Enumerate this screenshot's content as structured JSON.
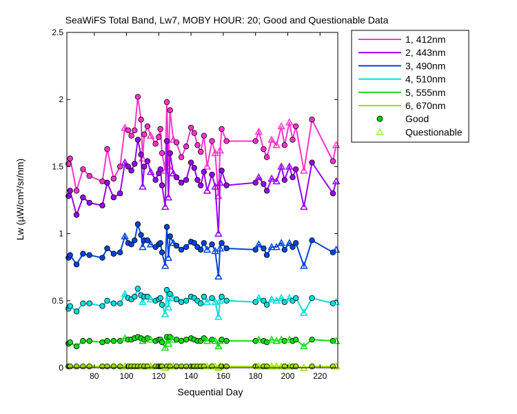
{
  "chart_data": {
    "type": "line",
    "title": "SeaWiFS Total Band,  Lw7, MOBY HOUR: 20;  Good and Questionable Data",
    "xlabel": "Sequential Day",
    "ylabel": "Lw (µW/cm²/sr/nm)",
    "xlim": [
      63,
      231
    ],
    "ylim": [
      0,
      2.5
    ],
    "xticks": [
      80,
      100,
      120,
      140,
      160,
      180,
      200,
      220
    ],
    "yticks": [
      0,
      0.5,
      1,
      1.5,
      2,
      2.5
    ],
    "ytick_labels": [
      "0",
      "0.5",
      "1",
      "1.5",
      "2",
      "2.5"
    ],
    "grid": false,
    "legend_position": "outside-right",
    "x": [
      64,
      65,
      69,
      73,
      77,
      85,
      88,
      92,
      96,
      99,
      101,
      103,
      105,
      107,
      109,
      110,
      111,
      113,
      115,
      118,
      120,
      121,
      122,
      124,
      125,
      126,
      127,
      129,
      131,
      134,
      137,
      140,
      142,
      144,
      146,
      148,
      150,
      153,
      155,
      157,
      158,
      159,
      162,
      180,
      182,
      185,
      187,
      190,
      193,
      196,
      198,
      201,
      203,
      205,
      210,
      215,
      228,
      230
    ],
    "series": [
      {
        "name": "1, 412nm",
        "color": "#ff33cc",
        "values": [
          1.52,
          1.56,
          1.32,
          1.48,
          1.43,
          1.39,
          1.63,
          1.41,
          1.5,
          1.79,
          1.77,
          1.73,
          1.77,
          2.02,
          1.85,
          1.56,
          1.74,
          1.8,
          1.73,
          1.67,
          1.72,
          1.78,
          1.6,
          1.47,
          1.98,
          1.5,
          1.92,
          1.7,
          1.68,
          1.57,
          1.65,
          1.79,
          1.75,
          1.66,
          1.61,
          1.73,
          1.5,
          1.69,
          1.6,
          1.28,
          1.62,
          1.78,
          1.69,
          1.69,
          1.76,
          1.63,
          1.57,
          1.7,
          1.66,
          1.8,
          1.66,
          1.83,
          1.7,
          1.8,
          1.47,
          1.85,
          1.54,
          1.66
        ]
      },
      {
        "name": "2, 443nm",
        "color": "#9900ee",
        "values": [
          1.28,
          1.32,
          1.14,
          1.27,
          1.23,
          1.21,
          1.38,
          1.27,
          1.3,
          1.53,
          1.5,
          1.47,
          1.52,
          1.7,
          1.59,
          1.35,
          1.5,
          1.54,
          1.46,
          1.4,
          1.45,
          1.48,
          1.36,
          1.2,
          1.69,
          1.27,
          1.6,
          1.45,
          1.42,
          1.38,
          1.4,
          1.53,
          1.49,
          1.4,
          1.36,
          1.46,
          1.32,
          1.44,
          1.35,
          1.0,
          1.38,
          1.47,
          1.36,
          1.38,
          1.42,
          1.37,
          1.32,
          1.41,
          1.39,
          1.5,
          1.4,
          1.5,
          1.42,
          1.48,
          1.2,
          1.53,
          1.3,
          1.39
        ]
      },
      {
        "name": "3, 490nm",
        "color": "#0044dd",
        "values": [
          0.82,
          0.84,
          0.77,
          0.85,
          0.84,
          0.82,
          0.89,
          0.85,
          0.86,
          0.98,
          0.93,
          0.92,
          0.95,
          1.07,
          0.99,
          0.9,
          0.95,
          0.95,
          0.92,
          0.9,
          0.92,
          0.93,
          0.86,
          0.76,
          1.05,
          0.82,
          0.98,
          0.93,
          0.91,
          0.88,
          0.9,
          0.94,
          0.93,
          0.9,
          0.88,
          0.93,
          0.88,
          0.92,
          0.87,
          0.68,
          0.89,
          0.93,
          0.89,
          0.88,
          0.92,
          0.89,
          0.84,
          0.9,
          0.9,
          0.93,
          0.88,
          0.93,
          0.9,
          0.93,
          0.76,
          0.95,
          0.86,
          0.88
        ]
      },
      {
        "name": "4, 510nm",
        "color": "#00dddd",
        "values": [
          0.44,
          0.46,
          0.42,
          0.48,
          0.48,
          0.46,
          0.5,
          0.48,
          0.48,
          0.55,
          0.52,
          0.51,
          0.53,
          0.59,
          0.54,
          0.49,
          0.53,
          0.53,
          0.51,
          0.5,
          0.51,
          0.52,
          0.47,
          0.4,
          0.58,
          0.45,
          0.55,
          0.52,
          0.51,
          0.49,
          0.5,
          0.53,
          0.52,
          0.5,
          0.48,
          0.53,
          0.49,
          0.52,
          0.49,
          0.38,
          0.5,
          0.53,
          0.5,
          0.49,
          0.52,
          0.5,
          0.47,
          0.51,
          0.5,
          0.52,
          0.49,
          0.52,
          0.5,
          0.52,
          0.41,
          0.52,
          0.48,
          0.49
        ]
      },
      {
        "name": "5, 555nm",
        "color": "#11dd11",
        "values": [
          0.18,
          0.19,
          0.16,
          0.2,
          0.2,
          0.19,
          0.2,
          0.2,
          0.2,
          0.22,
          0.21,
          0.21,
          0.22,
          0.23,
          0.22,
          0.2,
          0.21,
          0.22,
          0.21,
          0.2,
          0.21,
          0.21,
          0.19,
          0.15,
          0.23,
          0.18,
          0.23,
          0.21,
          0.21,
          0.2,
          0.21,
          0.22,
          0.21,
          0.2,
          0.2,
          0.22,
          0.2,
          0.21,
          0.2,
          0.16,
          0.2,
          0.21,
          0.2,
          0.2,
          0.21,
          0.2,
          0.19,
          0.21,
          0.2,
          0.21,
          0.2,
          0.21,
          0.2,
          0.21,
          0.16,
          0.21,
          0.2,
          0.2
        ]
      },
      {
        "name": "6, 670nm",
        "color": "#99dd00",
        "values": [
          0.01,
          0.01,
          0.01,
          0.01,
          0.01,
          0.01,
          0.01,
          0.01,
          0.01,
          0.01,
          0.01,
          0.01,
          0.01,
          0.01,
          0.01,
          0.01,
          0.01,
          0.01,
          0.01,
          0.01,
          0.01,
          0.01,
          0.01,
          0.0,
          0.01,
          0.01,
          0.01,
          0.01,
          0.01,
          0.01,
          0.01,
          0.01,
          0.01,
          0.01,
          0.01,
          0.01,
          0.01,
          0.01,
          0.01,
          0.0,
          0.01,
          0.01,
          0.01,
          0.01,
          0.01,
          0.01,
          0.01,
          0.01,
          0.01,
          0.01,
          0.01,
          0.01,
          0.01,
          0.01,
          0.0,
          0.01,
          0.01,
          0.01
        ]
      }
    ],
    "quality": [
      "G",
      "G",
      "G",
      "G",
      "G",
      "G",
      "G",
      "G",
      "G",
      "Q",
      "G",
      "G",
      "G",
      "G",
      "G",
      "Q",
      "G",
      "G",
      "Q",
      "G",
      "G",
      "G",
      "G",
      "Q",
      "G",
      "Q",
      "G",
      "Q",
      "G",
      "G",
      "G",
      "G",
      "G",
      "G",
      "G",
      "G",
      "Q",
      "G",
      "Q",
      "Q",
      "Q",
      "G",
      "G",
      "G",
      "Q",
      "G",
      "G",
      "Q",
      "Q",
      "Q",
      "G",
      "Q",
      "G",
      "G",
      "Q",
      "G",
      "G",
      "Q"
    ],
    "legend": {
      "marker_entries": [
        {
          "label": "Good",
          "marker": "circle",
          "color": "#00cc00"
        },
        {
          "label": "Questionable",
          "marker": "triangle",
          "color": "#99ff33"
        }
      ]
    }
  }
}
